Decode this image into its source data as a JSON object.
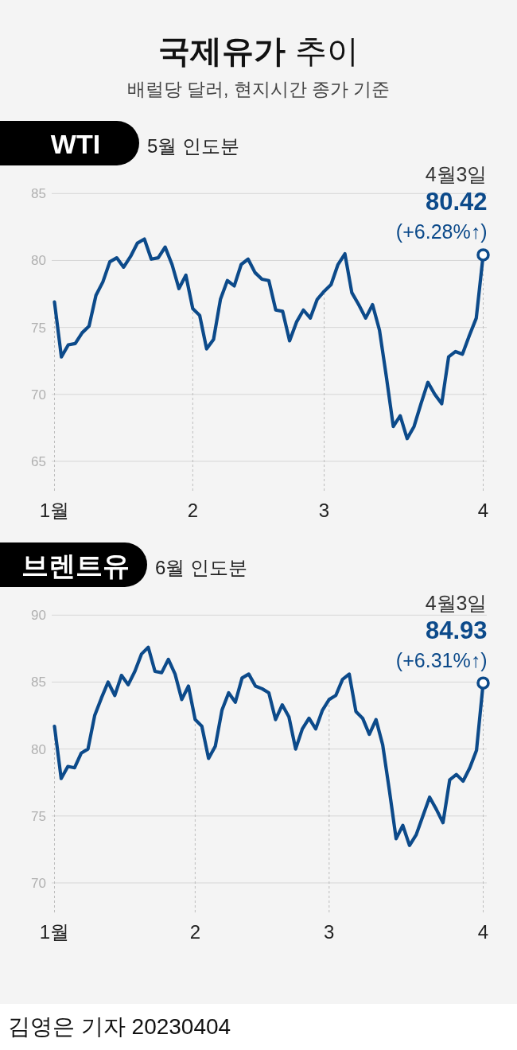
{
  "chart_data": [
    {
      "type": "other",
      "title": "**국제유가** 추이",
      "subtitle": "배럴당 달러, 현지시간 종가 기준",
      "annotations": [
        "김영은 기자 20230404"
      ]
    },
    {
      "type": "line",
      "title": "WTI",
      "subtitle": "5월 인도분",
      "categories": [
        "1월",
        null,
        null,
        null,
        null,
        null,
        null,
        null,
        null,
        null,
        null,
        null,
        null,
        null,
        null,
        null,
        null,
        null,
        null,
        null,
        "2",
        null,
        null,
        null,
        null,
        null,
        null,
        null,
        null,
        null,
        null,
        null,
        null,
        null,
        null,
        null,
        null,
        null,
        null,
        "3",
        null,
        null,
        null,
        null,
        null,
        null,
        null,
        null,
        null,
        null,
        null,
        null,
        null,
        null,
        null,
        null,
        null,
        null,
        null,
        null,
        null,
        null,
        "4"
      ],
      "series": [
        {
          "color": "#0c4a8a",
          "values": [
            76.9,
            72.8,
            73.7,
            73.8,
            74.6,
            75.1,
            77.4,
            78.4,
            79.9,
            80.2,
            79.5,
            80.3,
            81.3,
            81.6,
            80.1,
            80.2,
            81.0,
            79.7,
            77.9,
            78.9,
            76.4,
            75.9,
            73.4,
            74.1,
            77.1,
            78.5,
            78.1,
            79.7,
            80.1,
            79.1,
            78.6,
            78.5,
            76.3,
            76.2,
            74.0,
            75.4,
            76.3,
            75.7,
            77.1,
            77.7,
            78.2,
            79.7,
            80.5,
            77.6,
            76.7,
            75.7,
            76.7,
            74.8,
            71.3,
            67.6,
            68.4,
            66.7,
            67.6,
            69.3,
            70.9,
            70.0,
            69.3,
            72.8,
            73.2,
            73.0,
            74.4,
            75.7,
            80.42
          ],
          "value_labels": [
            null,
            null,
            null,
            null,
            null,
            null,
            null,
            null,
            null,
            null,
            null,
            null,
            null,
            null,
            null,
            null,
            null,
            null,
            null,
            null,
            null,
            null,
            null,
            null,
            null,
            null,
            null,
            null,
            null,
            null,
            null,
            null,
            null,
            null,
            null,
            null,
            null,
            null,
            null,
            null,
            null,
            null,
            null,
            null,
            null,
            null,
            null,
            null,
            null,
            null,
            null,
            null,
            null,
            null,
            null,
            null,
            null,
            null,
            null,
            null,
            null,
            null,
            "80.42"
          ]
        }
      ],
      "ylim": [
        62.8,
        85
      ],
      "yticks": [
        65,
        70,
        75,
        80,
        85
      ],
      "grid": true,
      "annotations": [
        "4월3일",
        {
          "text": "(+6.28%↑)",
          "x": "4",
          "y": 80.42
        }
      ]
    },
    {
      "type": "line",
      "title": "브렌트유",
      "subtitle": "6월 인도분",
      "categories": [
        "1월",
        null,
        null,
        null,
        null,
        null,
        null,
        null,
        null,
        null,
        null,
        null,
        null,
        null,
        null,
        null,
        null,
        null,
        null,
        null,
        null,
        "2",
        null,
        null,
        null,
        null,
        null,
        null,
        null,
        null,
        null,
        null,
        null,
        null,
        null,
        null,
        null,
        null,
        null,
        null,
        null,
        "3",
        null,
        null,
        null,
        null,
        null,
        null,
        null,
        null,
        null,
        null,
        null,
        null,
        null,
        null,
        null,
        null,
        null,
        null,
        null,
        null,
        null,
        null,
        "4"
      ],
      "series": [
        {
          "color": "#0c4a8a",
          "values": [
            81.7,
            77.8,
            78.7,
            78.6,
            79.7,
            80.0,
            82.5,
            83.8,
            85.0,
            84.0,
            85.5,
            84.8,
            85.8,
            87.1,
            87.6,
            85.8,
            85.7,
            86.7,
            85.6,
            83.7,
            84.7,
            82.2,
            81.7,
            79.3,
            80.2,
            82.9,
            84.2,
            83.5,
            85.3,
            85.6,
            84.7,
            84.5,
            84.2,
            82.2,
            83.3,
            82.4,
            80.0,
            81.5,
            82.3,
            81.5,
            82.9,
            83.7,
            84.0,
            85.2,
            85.6,
            82.8,
            82.3,
            81.1,
            82.2,
            80.3,
            76.9,
            73.3,
            74.3,
            72.8,
            73.6,
            75.0,
            76.4,
            75.5,
            74.5,
            77.7,
            78.1,
            77.6,
            78.6,
            79.9,
            84.93
          ],
          "value_labels": [
            null,
            null,
            null,
            null,
            null,
            null,
            null,
            null,
            null,
            null,
            null,
            null,
            null,
            null,
            null,
            null,
            null,
            null,
            null,
            null,
            null,
            null,
            null,
            null,
            null,
            null,
            null,
            null,
            null,
            null,
            null,
            null,
            null,
            null,
            null,
            null,
            null,
            null,
            null,
            null,
            null,
            null,
            null,
            null,
            null,
            null,
            null,
            null,
            null,
            null,
            null,
            null,
            null,
            null,
            null,
            null,
            null,
            null,
            null,
            null,
            null,
            null,
            null,
            null,
            "84.93"
          ]
        }
      ],
      "ylim": [
        67.8,
        90
      ],
      "yticks": [
        70,
        75,
        80,
        85,
        90
      ],
      "grid": true,
      "annotations": [
        "4월3일",
        {
          "text": "(+6.31%↑)",
          "x": "4",
          "y": 84.93
        }
      ]
    }
  ]
}
